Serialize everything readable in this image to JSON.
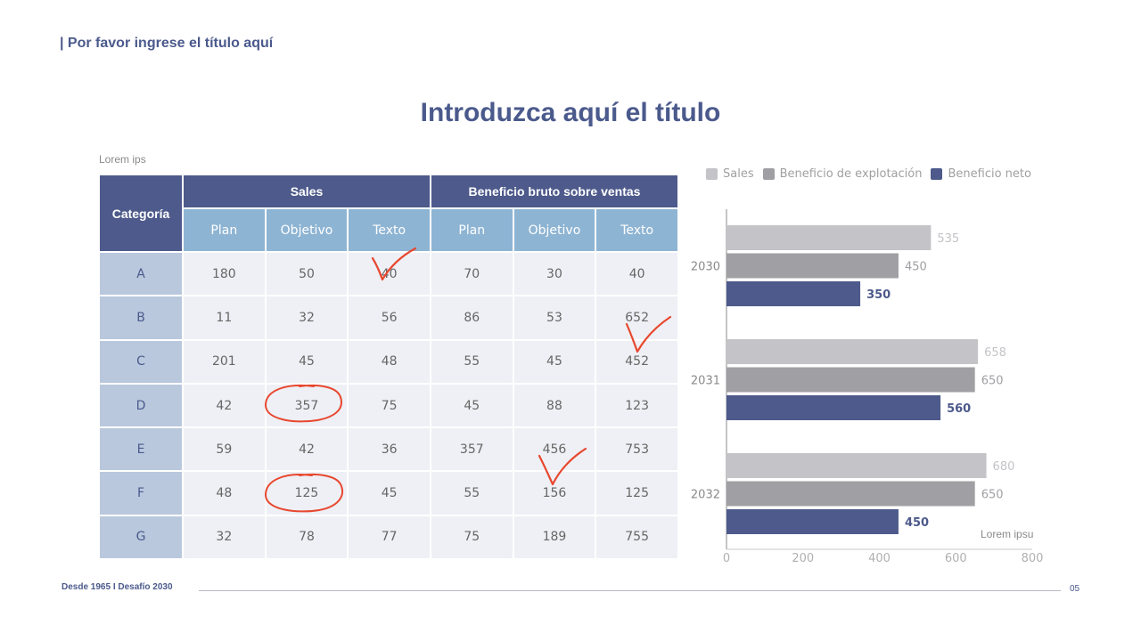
{
  "header": {
    "title": "| Por favor ingrese el título aquí"
  },
  "main_title": "Introduzca aquí el título",
  "table": {
    "caption": "Lorem ips",
    "category_header": "Categoría",
    "groups": [
      "Sales",
      "Beneficio bruto sobre ventas"
    ],
    "subheaders": [
      "Plan",
      "Objetivo",
      "Texto",
      "Plan",
      "Objetivo",
      "Texto"
    ],
    "rows": [
      {
        "label": "A",
        "values": [
          "180",
          "50",
          "40",
          "70",
          "30",
          "40"
        ]
      },
      {
        "label": "B",
        "values": [
          "11",
          "32",
          "56",
          "86",
          "53",
          "652"
        ]
      },
      {
        "label": "C",
        "values": [
          "201",
          "45",
          "48",
          "55",
          "45",
          "452"
        ]
      },
      {
        "label": "D",
        "values": [
          "42",
          "357",
          "75",
          "45",
          "88",
          "123"
        ]
      },
      {
        "label": "E",
        "values": [
          "59",
          "42",
          "36",
          "357",
          "456",
          "753"
        ]
      },
      {
        "label": "F",
        "values": [
          "48",
          "125",
          "45",
          "55",
          "156",
          "125"
        ]
      },
      {
        "label": "G",
        "values": [
          "32",
          "78",
          "77",
          "75",
          "189",
          "755"
        ]
      }
    ]
  },
  "chart_data": {
    "type": "bar",
    "orientation": "horizontal",
    "categories": [
      "2030",
      "2031",
      "2032"
    ],
    "series": [
      {
        "name": "Sales",
        "values": [
          535,
          658,
          680
        ],
        "color": "#c4c3c7"
      },
      {
        "name": "Beneficio de explotación",
        "values": [
          450,
          650,
          650
        ],
        "color": "#a09fa3"
      },
      {
        "name": "Beneficio neto",
        "values": [
          350,
          560,
          450
        ],
        "color": "#4d5a8b"
      }
    ],
    "xlim": [
      0,
      800
    ],
    "xticks": [
      "0",
      "200",
      "400",
      "600",
      "800"
    ],
    "legend_position": "top",
    "note": "Lorem ipsu"
  },
  "footer": {
    "left": "Desde 1965 I Desafío 2030",
    "page": "05"
  }
}
